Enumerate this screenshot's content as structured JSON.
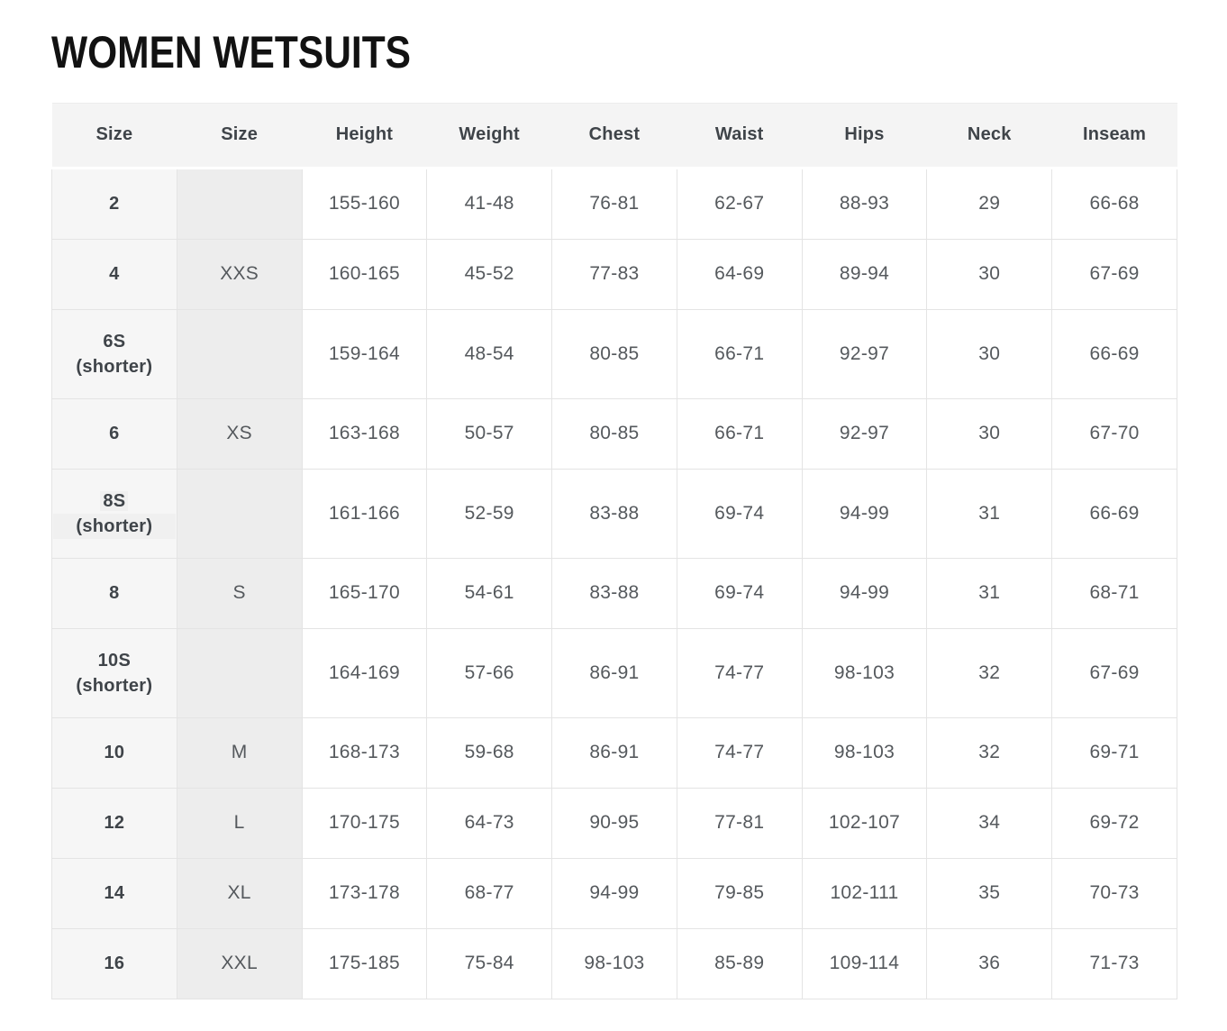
{
  "page": {
    "title": "WOMEN WETSUITS"
  },
  "colors": {
    "title_text": "#121212",
    "header_background": "#f4f4f4",
    "size_column_background": "#f6f6f6",
    "letter_column_background": "#ededed",
    "cell_border": "#e4e4e4",
    "header_text": "#3f4449",
    "body_text": "#55595d",
    "selection_highlight": "#f0f0f0"
  },
  "table": {
    "headers": [
      "Size",
      "Size",
      "Height",
      "Weight",
      "Chest",
      "Waist",
      "Hips",
      "Neck",
      "Inseam"
    ],
    "rows": [
      {
        "size": "2",
        "note": "",
        "letter": "",
        "height": "155-160",
        "weight": "41-48",
        "chest": "76-81",
        "waist": "62-67",
        "hips": "88-93",
        "neck": "29",
        "inseam": "66-68"
      },
      {
        "size": "4",
        "note": "",
        "letter": "XXS",
        "height": "160-165",
        "weight": "45-52",
        "chest": "77-83",
        "waist": "64-69",
        "hips": "89-94",
        "neck": "30",
        "inseam": "67-69"
      },
      {
        "size": "6S",
        "note": "(shorter)",
        "letter": "",
        "height": "159-164",
        "weight": "48-54",
        "chest": "80-85",
        "waist": "66-71",
        "hips": "92-97",
        "neck": "30",
        "inseam": "66-69"
      },
      {
        "size": "6",
        "note": "",
        "letter": "XS",
        "height": "163-168",
        "weight": "50-57",
        "chest": "80-85",
        "waist": "66-71",
        "hips": "92-97",
        "neck": "30",
        "inseam": "67-70"
      },
      {
        "size": "8S",
        "note": "(shorter)",
        "letter": "",
        "height": "161-166",
        "weight": "52-59",
        "chest": "83-88",
        "waist": "69-74",
        "hips": "94-99",
        "neck": "31",
        "inseam": "66-69",
        "highlight": true
      },
      {
        "size": "8",
        "note": "",
        "letter": "S",
        "height": "165-170",
        "weight": "54-61",
        "chest": "83-88",
        "waist": "69-74",
        "hips": "94-99",
        "neck": "31",
        "inseam": "68-71"
      },
      {
        "size": "10S",
        "note": "(shorter)",
        "letter": "",
        "height": "164-169",
        "weight": "57-66",
        "chest": "86-91",
        "waist": "74-77",
        "hips": "98-103",
        "neck": "32",
        "inseam": "67-69"
      },
      {
        "size": "10",
        "note": "",
        "letter": "M",
        "height": "168-173",
        "weight": "59-68",
        "chest": "86-91",
        "waist": "74-77",
        "hips": "98-103",
        "neck": "32",
        "inseam": "69-71"
      },
      {
        "size": "12",
        "note": "",
        "letter": "L",
        "height": "170-175",
        "weight": "64-73",
        "chest": "90-95",
        "waist": "77-81",
        "hips": "102-107",
        "neck": "34",
        "inseam": "69-72"
      },
      {
        "size": "14",
        "note": "",
        "letter": "XL",
        "height": "173-178",
        "weight": "68-77",
        "chest": "94-99",
        "waist": "79-85",
        "hips": "102-111",
        "neck": "35",
        "inseam": "70-73"
      },
      {
        "size": "16",
        "note": "",
        "letter": "XXL",
        "height": "175-185",
        "weight": "75-84",
        "chest": "98-103",
        "waist": "85-89",
        "hips": "109-114",
        "neck": "36",
        "inseam": "71-73"
      }
    ]
  }
}
